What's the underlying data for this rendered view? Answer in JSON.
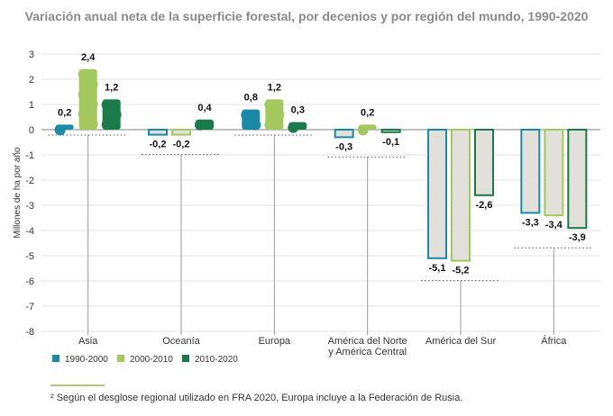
{
  "title": "Variación anual neta de la superficie forestal, por decenios y por región del mundo, 1990-2020",
  "footnote": "² Según el desglose regional utilizado en FRA 2020, Europa incluye a la Federación de Rusia.",
  "chart_data": {
    "type": "bar",
    "ylabel": "Millones de ha por año",
    "ylim": [
      -8,
      3
    ],
    "yticks": [
      3,
      2,
      1,
      0,
      -1,
      -2,
      -3,
      -4,
      -5,
      -6,
      -7,
      -8
    ],
    "grid": true,
    "legend_position": "bottom-left",
    "categories": [
      "Asia",
      "Oceanía",
      "Europa",
      "América del Norte\ny América Central",
      "América del Sur",
      "África"
    ],
    "series": [
      {
        "name": "1990-2000",
        "color": "#1a8aa8",
        "values": [
          0.2,
          -0.2,
          0.8,
          -0.3,
          -5.1,
          -3.3
        ],
        "labels": [
          "0,2",
          "-0,2",
          "0,8",
          "-0,3",
          "-5,1",
          "-3,3"
        ]
      },
      {
        "name": "2000-2010",
        "color": "#a3c95e",
        "values": [
          2.4,
          -0.2,
          1.2,
          0.2,
          -5.2,
          -3.4
        ],
        "labels": [
          "2,4",
          "-0,2",
          "1,2",
          "0,2",
          "-5,2",
          "-3,4"
        ]
      },
      {
        "name": "2010-2020",
        "color": "#1a7a4a",
        "values": [
          1.2,
          0.4,
          0.3,
          -0.1,
          -2.6,
          -3.9
        ],
        "labels": [
          "1,2",
          "0,4",
          "0,3",
          "-0,1",
          "-2,6",
          "-3,9"
        ]
      }
    ],
    "loss_fill": "#e2e0da"
  }
}
